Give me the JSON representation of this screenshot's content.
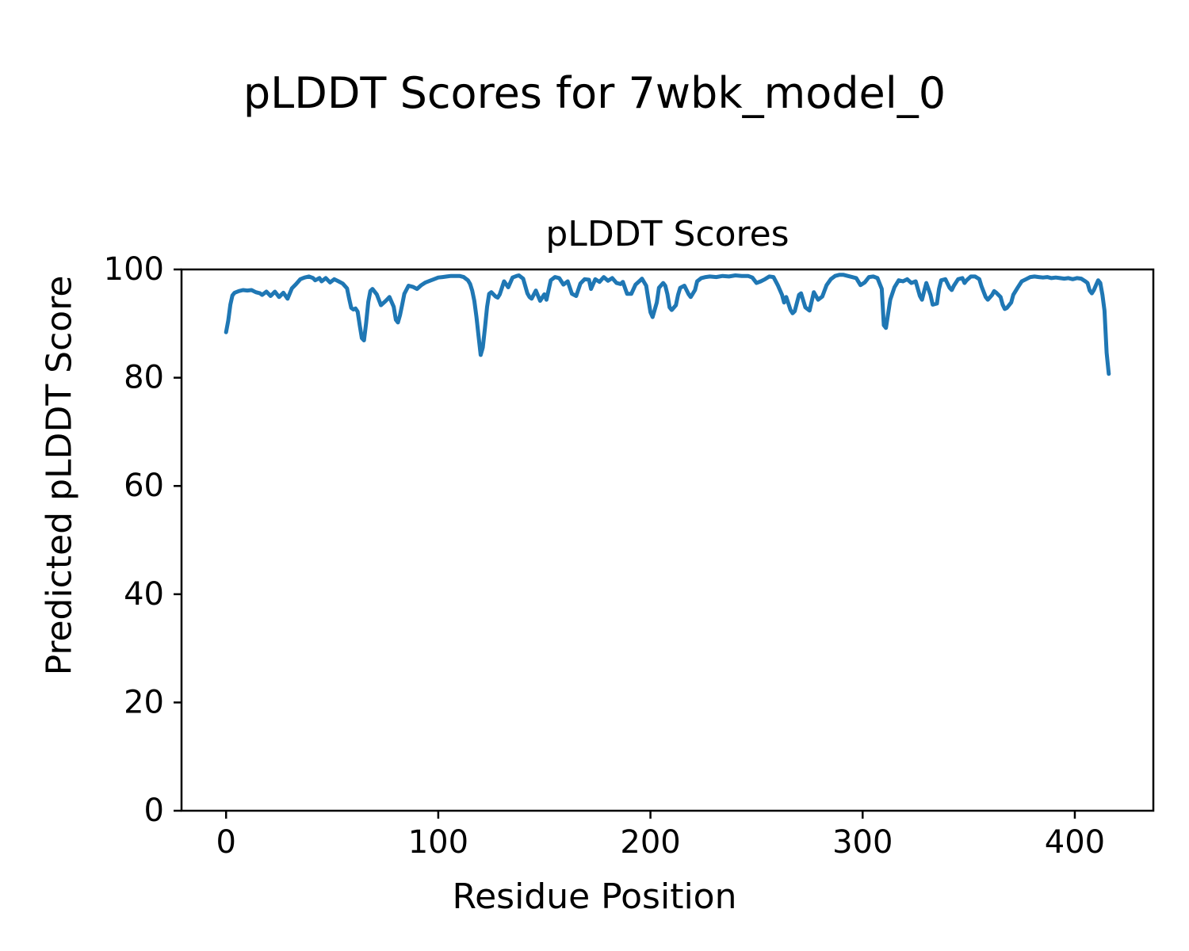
{
  "figure_title": "pLDDT Scores for 7wbk_model_0",
  "chart_data": {
    "type": "line",
    "title": "pLDDT Scores",
    "xlabel": "Residue Position",
    "ylabel": "Predicted pLDDT Score",
    "xlim": [
      -21,
      437
    ],
    "ylim": [
      0,
      100
    ],
    "xticks": [
      0,
      100,
      200,
      300,
      400
    ],
    "yticks": [
      0,
      20,
      40,
      60,
      80,
      100
    ],
    "grid": false,
    "legend": "none",
    "line_color": "#1f77b4",
    "series": [
      {
        "name": "pLDDT",
        "points": [
          [
            0,
            88.4
          ],
          [
            1,
            90.5
          ],
          [
            2,
            93.5
          ],
          [
            3,
            95.2
          ],
          [
            4,
            95.7
          ],
          [
            6,
            96.0
          ],
          [
            8,
            96.2
          ],
          [
            10,
            96.1
          ],
          [
            12,
            96.2
          ],
          [
            14,
            95.8
          ],
          [
            16,
            95.6
          ],
          [
            17,
            95.3
          ],
          [
            19,
            95.9
          ],
          [
            21,
            95.1
          ],
          [
            23,
            95.9
          ],
          [
            25,
            94.9
          ],
          [
            27,
            95.7
          ],
          [
            29,
            94.6
          ],
          [
            31,
            96.5
          ],
          [
            33,
            97.3
          ],
          [
            35,
            98.2
          ],
          [
            37,
            98.5
          ],
          [
            39,
            98.7
          ],
          [
            41,
            98.4
          ],
          [
            42,
            98.0
          ],
          [
            44,
            98.4
          ],
          [
            45,
            97.8
          ],
          [
            47,
            98.4
          ],
          [
            49,
            97.6
          ],
          [
            51,
            98.2
          ],
          [
            53,
            97.8
          ],
          [
            55,
            97.4
          ],
          [
            57,
            96.5
          ],
          [
            58,
            94.6
          ],
          [
            59,
            92.9
          ],
          [
            60,
            92.6
          ],
          [
            61,
            92.8
          ],
          [
            62,
            92.2
          ],
          [
            63,
            89.6
          ],
          [
            64,
            87.3
          ],
          [
            65,
            86.9
          ],
          [
            66,
            90.1
          ],
          [
            67,
            94.0
          ],
          [
            68,
            96.0
          ],
          [
            69,
            96.4
          ],
          [
            71,
            95.4
          ],
          [
            73,
            93.4
          ],
          [
            75,
            94.1
          ],
          [
            77,
            94.9
          ],
          [
            79,
            93.1
          ],
          [
            80,
            90.7
          ],
          [
            81,
            90.2
          ],
          [
            82,
            91.6
          ],
          [
            83,
            93.5
          ],
          [
            84,
            95.5
          ],
          [
            86,
            97.0
          ],
          [
            88,
            96.8
          ],
          [
            90,
            96.4
          ],
          [
            92,
            97.1
          ],
          [
            94,
            97.6
          ],
          [
            96,
            97.9
          ],
          [
            98,
            98.2
          ],
          [
            100,
            98.5
          ],
          [
            102,
            98.6
          ],
          [
            104,
            98.7
          ],
          [
            106,
            98.8
          ],
          [
            108,
            98.8
          ],
          [
            110,
            98.8
          ],
          [
            112,
            98.6
          ],
          [
            114,
            98.0
          ],
          [
            115,
            97.3
          ],
          [
            116,
            96.1
          ],
          [
            117,
            94.2
          ],
          [
            118,
            91.2
          ],
          [
            119,
            87.6
          ],
          [
            120,
            84.2
          ],
          [
            121,
            85.6
          ],
          [
            122,
            89.2
          ],
          [
            123,
            93.1
          ],
          [
            124,
            95.5
          ],
          [
            125,
            95.8
          ],
          [
            126,
            95.4
          ],
          [
            127,
            95.0
          ],
          [
            128,
            94.8
          ],
          [
            129,
            95.4
          ],
          [
            131,
            97.8
          ],
          [
            133,
            96.7
          ],
          [
            135,
            98.5
          ],
          [
            137,
            98.8
          ],
          [
            138,
            98.9
          ],
          [
            140,
            98.3
          ],
          [
            142,
            95.6
          ],
          [
            143,
            94.9
          ],
          [
            144,
            94.6
          ],
          [
            146,
            96.1
          ],
          [
            148,
            94.2
          ],
          [
            150,
            95.4
          ],
          [
            151,
            94.4
          ],
          [
            153,
            98.0
          ],
          [
            155,
            98.6
          ],
          [
            157,
            98.4
          ],
          [
            159,
            97.2
          ],
          [
            161,
            97.8
          ],
          [
            163,
            95.5
          ],
          [
            165,
            95.1
          ],
          [
            167,
            97.4
          ],
          [
            169,
            98.2
          ],
          [
            171,
            98.1
          ],
          [
            172,
            96.4
          ],
          [
            174,
            98.2
          ],
          [
            176,
            97.7
          ],
          [
            178,
            98.6
          ],
          [
            180,
            97.9
          ],
          [
            182,
            98.4
          ],
          [
            184,
            97.5
          ],
          [
            186,
            97.3
          ],
          [
            187,
            97.7
          ],
          [
            189,
            95.5
          ],
          [
            191,
            95.5
          ],
          [
            193,
            97.2
          ],
          [
            195,
            97.9
          ],
          [
            196,
            98.3
          ],
          [
            198,
            97.0
          ],
          [
            199,
            94.5
          ],
          [
            200,
            92.1
          ],
          [
            201,
            91.2
          ],
          [
            203,
            93.9
          ],
          [
            204,
            96.6
          ],
          [
            206,
            97.5
          ],
          [
            207,
            97.0
          ],
          [
            208,
            95.4
          ],
          [
            209,
            93.0
          ],
          [
            210,
            92.5
          ],
          [
            212,
            93.4
          ],
          [
            213,
            95.3
          ],
          [
            214,
            96.6
          ],
          [
            216,
            97.0
          ],
          [
            218,
            95.4
          ],
          [
            219,
            94.9
          ],
          [
            221,
            96.2
          ],
          [
            222,
            97.8
          ],
          [
            224,
            98.4
          ],
          [
            226,
            98.6
          ],
          [
            228,
            98.7
          ],
          [
            231,
            98.6
          ],
          [
            234,
            98.8
          ],
          [
            237,
            98.7
          ],
          [
            240,
            98.9
          ],
          [
            243,
            98.8
          ],
          [
            246,
            98.8
          ],
          [
            248,
            98.5
          ],
          [
            250,
            97.5
          ],
          [
            252,
            97.8
          ],
          [
            254,
            98.2
          ],
          [
            256,
            98.7
          ],
          [
            258,
            98.6
          ],
          [
            260,
            97.1
          ],
          [
            262,
            95.3
          ],
          [
            263,
            93.9
          ],
          [
            264,
            94.9
          ],
          [
            266,
            92.5
          ],
          [
            267,
            91.9
          ],
          [
            268,
            92.3
          ],
          [
            270,
            95.3
          ],
          [
            271,
            95.6
          ],
          [
            273,
            93.0
          ],
          [
            275,
            92.4
          ],
          [
            277,
            95.8
          ],
          [
            279,
            94.4
          ],
          [
            281,
            95.0
          ],
          [
            283,
            97.1
          ],
          [
            285,
            98.2
          ],
          [
            287,
            98.8
          ],
          [
            289,
            99.0
          ],
          [
            291,
            99.0
          ],
          [
            293,
            98.8
          ],
          [
            295,
            98.6
          ],
          [
            297,
            98.4
          ],
          [
            299,
            97.1
          ],
          [
            301,
            97.6
          ],
          [
            303,
            98.6
          ],
          [
            305,
            98.7
          ],
          [
            307,
            98.4
          ],
          [
            309,
            96.4
          ],
          [
            310,
            89.7
          ],
          [
            311,
            89.2
          ],
          [
            313,
            94.4
          ],
          [
            315,
            96.7
          ],
          [
            317,
            98.0
          ],
          [
            319,
            97.8
          ],
          [
            321,
            98.2
          ],
          [
            323,
            97.5
          ],
          [
            325,
            97.8
          ],
          [
            327,
            95.1
          ],
          [
            328,
            94.4
          ],
          [
            329,
            96.0
          ],
          [
            330,
            97.5
          ],
          [
            332,
            95.3
          ],
          [
            333,
            93.5
          ],
          [
            335,
            93.7
          ],
          [
            336,
            96.4
          ],
          [
            337,
            98.0
          ],
          [
            339,
            98.2
          ],
          [
            341,
            96.6
          ],
          [
            342,
            96.2
          ],
          [
            343,
            97.0
          ],
          [
            345,
            98.2
          ],
          [
            347,
            98.4
          ],
          [
            348,
            97.5
          ],
          [
            349,
            98.0
          ],
          [
            351,
            98.7
          ],
          [
            353,
            98.7
          ],
          [
            355,
            98.2
          ],
          [
            356,
            96.9
          ],
          [
            358,
            94.9
          ],
          [
            359,
            94.4
          ],
          [
            361,
            95.3
          ],
          [
            362,
            96.0
          ],
          [
            363,
            95.7
          ],
          [
            365,
            94.9
          ],
          [
            366,
            93.5
          ],
          [
            367,
            92.7
          ],
          [
            368,
            92.9
          ],
          [
            370,
            93.9
          ],
          [
            371,
            95.3
          ],
          [
            373,
            96.6
          ],
          [
            375,
            97.8
          ],
          [
            377,
            98.2
          ],
          [
            379,
            98.6
          ],
          [
            381,
            98.7
          ],
          [
            383,
            98.6
          ],
          [
            385,
            98.5
          ],
          [
            387,
            98.6
          ],
          [
            389,
            98.4
          ],
          [
            391,
            98.5
          ],
          [
            393,
            98.4
          ],
          [
            395,
            98.3
          ],
          [
            397,
            98.4
          ],
          [
            399,
            98.2
          ],
          [
            401,
            98.4
          ],
          [
            403,
            98.3
          ],
          [
            405,
            97.8
          ],
          [
            406,
            97.5
          ],
          [
            407,
            96.1
          ],
          [
            408,
            95.6
          ],
          [
            409,
            96.2
          ],
          [
            410,
            97.1
          ],
          [
            411,
            98.0
          ],
          [
            412,
            97.5
          ],
          [
            413,
            95.3
          ],
          [
            414,
            92.4
          ],
          [
            415,
            84.6
          ],
          [
            416,
            80.7
          ]
        ]
      }
    ]
  }
}
